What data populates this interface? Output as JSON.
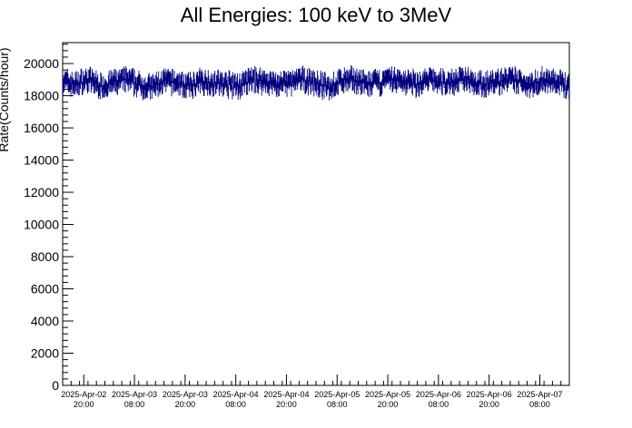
{
  "chart_data": {
    "type": "line",
    "title": "All Energies:  100 keV to 3MeV",
    "xlabel": "",
    "ylabel": "Rate(Counts/hour)",
    "ylim": [
      0,
      21300
    ],
    "xlim": [
      "2025-04-02T15:00",
      "2025-04-07T15:00"
    ],
    "yticks": [
      0,
      2000,
      4000,
      6000,
      8000,
      10000,
      12000,
      14000,
      16000,
      18000,
      20000
    ],
    "xticks": [
      {
        "x": "2025-04-02T20:00",
        "line1": "2025-Apr-02",
        "line2": "20:00"
      },
      {
        "x": "2025-04-03T08:00",
        "line1": "2025-Apr-03",
        "line2": "08:00"
      },
      {
        "x": "2025-04-03T20:00",
        "line1": "2025-Apr-03",
        "line2": "20:00"
      },
      {
        "x": "2025-04-04T08:00",
        "line1": "2025-Apr-04",
        "line2": "08:00"
      },
      {
        "x": "2025-04-04T20:00",
        "line1": "2025-Apr-04",
        "line2": "20:00"
      },
      {
        "x": "2025-04-05T08:00",
        "line1": "2025-Apr-05",
        "line2": "08:00"
      },
      {
        "x": "2025-04-05T20:00",
        "line1": "2025-Apr-05",
        "line2": "20:00"
      },
      {
        "x": "2025-04-06T08:00",
        "line1": "2025-Apr-06",
        "line2": "08:00"
      },
      {
        "x": "2025-04-06T20:00",
        "line1": "2025-Apr-06",
        "line2": "20:00"
      },
      {
        "x": "2025-04-07T08:00",
        "line1": "2025-Apr-07",
        "line2": "08:00"
      }
    ],
    "series": [
      {
        "color": "#000080",
        "x": [
          "2025-04-02T15:00",
          "2025-04-02T18:00",
          "2025-04-02T21:00",
          "2025-04-03T00:00",
          "2025-04-03T03:00",
          "2025-04-03T06:00",
          "2025-04-03T09:00",
          "2025-04-03T12:00",
          "2025-04-03T15:00",
          "2025-04-03T18:00",
          "2025-04-03T21:00",
          "2025-04-04T00:00",
          "2025-04-04T03:00",
          "2025-04-04T06:00",
          "2025-04-04T09:00",
          "2025-04-04T12:00",
          "2025-04-04T15:00",
          "2025-04-04T18:00",
          "2025-04-04T21:00",
          "2025-04-05T00:00",
          "2025-04-05T03:00",
          "2025-04-05T06:00",
          "2025-04-05T09:00",
          "2025-04-05T12:00",
          "2025-04-05T15:00",
          "2025-04-05T18:00",
          "2025-04-05T21:00",
          "2025-04-06T00:00",
          "2025-04-06T03:00",
          "2025-04-06T06:00",
          "2025-04-06T09:00",
          "2025-04-06T12:00",
          "2025-04-06T15:00",
          "2025-04-06T18:00",
          "2025-04-06T21:00",
          "2025-04-07T00:00",
          "2025-04-07T03:00",
          "2025-04-07T06:00",
          "2025-04-07T09:00",
          "2025-04-07T12:00",
          "2025-04-07T15:00"
        ],
        "y": [
          18900,
          18700,
          19000,
          18600,
          18800,
          19000,
          18700,
          18500,
          18900,
          18800,
          18600,
          18900,
          18800,
          18700,
          18600,
          19000,
          18900,
          18700,
          18800,
          19000,
          18800,
          18500,
          18900,
          19000,
          18700,
          18800,
          19000,
          18900,
          18700,
          19000,
          18800,
          18900,
          19100,
          18700,
          18800,
          19000,
          18900,
          18700,
          19000,
          18800,
          18600
        ],
        "error_band": 700
      }
    ],
    "grid": false,
    "legend": "none"
  }
}
